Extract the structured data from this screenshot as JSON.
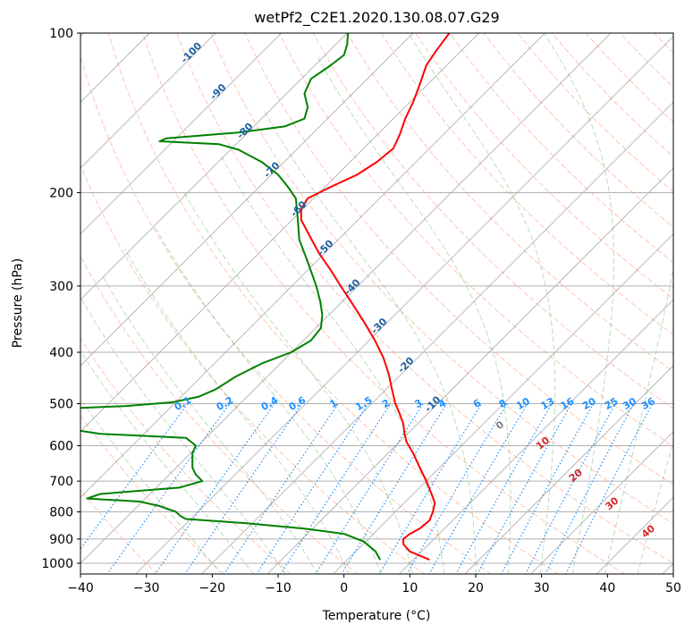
{
  "chart_data": {
    "type": "line",
    "title": "wetPf2_C2E1.2020.130.08.07.G29",
    "xlabel": "Temperature (°C)",
    "ylabel": "Pressure (hPa)",
    "xlim": [
      -40,
      50
    ],
    "ylim": [
      1050,
      100
    ],
    "yscale": "log",
    "x_ticks": [
      -40,
      -30,
      -20,
      -10,
      0,
      10,
      20,
      30,
      40,
      50
    ],
    "x_tick_labels": [
      "−40",
      "−30",
      "−20",
      "−10",
      "0",
      "10",
      "20",
      "30",
      "40",
      "50"
    ],
    "y_ticks": [
      1000,
      900,
      800,
      700,
      600,
      500,
      400,
      300,
      200,
      100
    ],
    "y_tick_labels": [
      "1000",
      "900",
      "800",
      "700",
      "600",
      "500",
      "400",
      "300",
      "200",
      "100"
    ],
    "grid": true,
    "series": [
      {
        "color": "#ff0000",
        "points": [
          [
            985,
            13.0
          ],
          [
            950,
            10.0
          ],
          [
            920,
            9.0
          ],
          [
            900,
            9.0
          ],
          [
            880,
            10.0
          ],
          [
            860,
            11.5
          ],
          [
            830,
            13.0
          ],
          [
            800,
            13.5
          ],
          [
            770,
            13.8
          ],
          [
            740,
            13.3
          ],
          [
            700,
            12.5
          ],
          [
            660,
            11.5
          ],
          [
            620,
            10.5
          ],
          [
            590,
            9.5
          ],
          [
            570,
            9.2
          ],
          [
            545,
            9.0
          ],
          [
            520,
            8.4
          ],
          [
            500,
            7.8
          ],
          [
            470,
            7.3
          ],
          [
            440,
            6.8
          ],
          [
            410,
            6.0
          ],
          [
            380,
            4.7
          ],
          [
            350,
            3.0
          ],
          [
            320,
            1.0
          ],
          [
            300,
            -0.5
          ],
          [
            280,
            -2.0
          ],
          [
            260,
            -3.8
          ],
          [
            240,
            -5.3
          ],
          [
            225,
            -6.5
          ],
          [
            215,
            -6.5
          ],
          [
            205,
            -5.5
          ],
          [
            195,
            -2.0
          ],
          [
            185,
            2.0
          ],
          [
            175,
            5.0
          ],
          [
            165,
            7.5
          ],
          [
            155,
            8.5
          ],
          [
            145,
            9.3
          ],
          [
            135,
            10.5
          ],
          [
            125,
            11.5
          ],
          [
            115,
            12.5
          ],
          [
            108,
            14.0
          ],
          [
            100,
            16.0
          ]
        ]
      },
      {
        "color": "#008000",
        "points": [
          [
            985,
            5.5
          ],
          [
            950,
            4.8
          ],
          [
            910,
            3.0
          ],
          [
            880,
            0.0
          ],
          [
            860,
            -6.0
          ],
          [
            840,
            -15.0
          ],
          [
            825,
            -24.0
          ],
          [
            815,
            -24.8
          ],
          [
            800,
            -25.5
          ],
          [
            780,
            -28.0
          ],
          [
            765,
            -31.0
          ],
          [
            755,
            -39.0
          ],
          [
            740,
            -37.0
          ],
          [
            720,
            -25.0
          ],
          [
            700,
            -21.5
          ],
          [
            680,
            -22.5
          ],
          [
            660,
            -23.0
          ],
          [
            640,
            -23.0
          ],
          [
            620,
            -23.0
          ],
          [
            600,
            -22.5
          ],
          [
            580,
            -24.0
          ],
          [
            570,
            -37.0
          ],
          [
            560,
            -41.0
          ],
          [
            510,
            -41.0
          ],
          [
            505,
            -33.0
          ],
          [
            497,
            -26.0
          ],
          [
            485,
            -22.0
          ],
          [
            470,
            -19.5
          ],
          [
            445,
            -16.5
          ],
          [
            420,
            -12.5
          ],
          [
            400,
            -8.0
          ],
          [
            380,
            -5.0
          ],
          [
            360,
            -3.5
          ],
          [
            340,
            -3.3
          ],
          [
            320,
            -3.6
          ],
          [
            300,
            -4.2
          ],
          [
            270,
            -5.5
          ],
          [
            245,
            -6.8
          ],
          [
            225,
            -7.0
          ],
          [
            205,
            -7.3
          ],
          [
            195,
            -8.5
          ],
          [
            185,
            -10.0
          ],
          [
            175,
            -12.5
          ],
          [
            166,
            -16.0
          ],
          [
            162,
            -19.0
          ],
          [
            160,
            -28.0
          ],
          [
            158,
            -27.0
          ],
          [
            154,
            -16.0
          ],
          [
            150,
            -9.0
          ],
          [
            145,
            -6.0
          ],
          [
            138,
            -5.5
          ],
          [
            130,
            -6.0
          ],
          [
            122,
            -5.0
          ],
          [
            115,
            -2.0
          ],
          [
            110,
            0.0
          ],
          [
            105,
            0.5
          ],
          [
            100,
            0.6
          ]
        ]
      }
    ],
    "dry_adiabat_labels": [
      "-100",
      "-90",
      "-80",
      "-70",
      "-60",
      "-50",
      "-40",
      "-30",
      "-20",
      "-10"
    ],
    "mixing_ratio_labels": [
      "0.1",
      "0.2",
      "0.4",
      "0.6",
      "1",
      "1.5",
      "2",
      "3",
      "4",
      "6",
      "8",
      "10",
      "13",
      "16",
      "20",
      "25",
      "30",
      "36"
    ],
    "moist_adiabat_labels": [
      "0",
      "10",
      "20",
      "30",
      "40"
    ],
    "colors": {
      "temperature": "#ff0000",
      "dewpoint": "#008000",
      "isotherm": "#7f7f7f",
      "dry_adiabat": "#ff7f50",
      "moist_adiabat": "#5aa85a",
      "mixing_ratio": "#1e90ff",
      "dry_label": "#1f5f9f",
      "moist_label": "#d62728"
    }
  }
}
